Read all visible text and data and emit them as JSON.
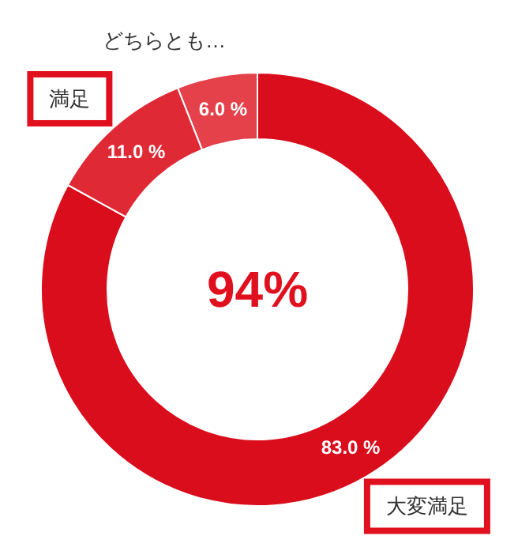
{
  "chart_data": {
    "type": "donut",
    "categories": [
      "大変満足",
      "満足",
      "どちらとも…"
    ],
    "values": [
      83.0,
      11.0,
      6.0
    ],
    "colors": [
      "#d90d1b",
      "#df2a36",
      "#e4414b"
    ],
    "value_labels": [
      "83.0 %",
      "11.0 %",
      "6.0 %"
    ],
    "annotations": [
      "94%"
    ]
  }
}
